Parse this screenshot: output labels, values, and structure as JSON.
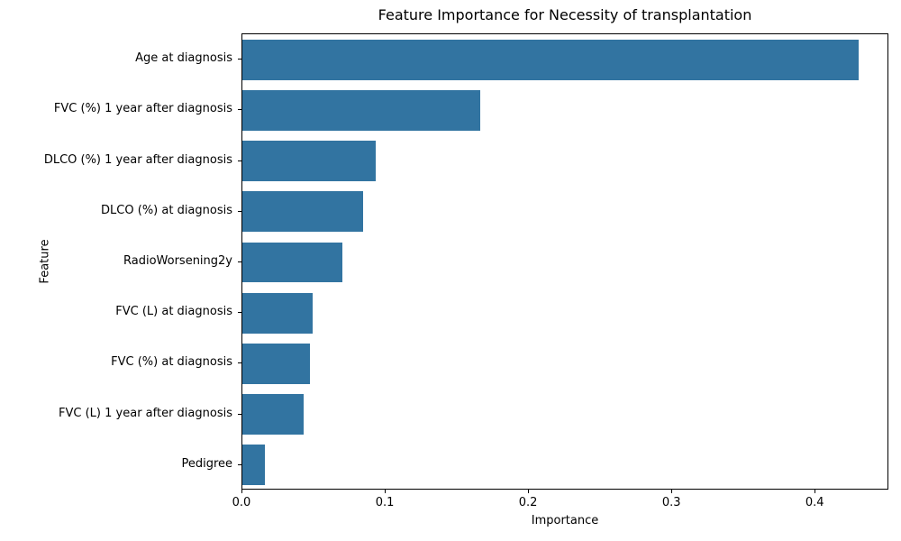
{
  "chart_data": {
    "type": "bar",
    "orientation": "horizontal",
    "title": "Feature Importance for Necessity of transplantation",
    "xlabel": "Importance",
    "ylabel": "Feature",
    "categories": [
      "Age at diagnosis",
      "FVC (%) 1 year after diagnosis",
      "DLCO (%) 1 year after diagnosis",
      "DLCO (%) at diagnosis",
      "RadioWorsening2y",
      "FVC (L) at diagnosis",
      "FVC (%) at diagnosis",
      "FVC (L) 1 year after diagnosis",
      "Pedigree"
    ],
    "values": [
      0.43,
      0.166,
      0.093,
      0.084,
      0.07,
      0.049,
      0.047,
      0.043,
      0.016
    ],
    "xlim": [
      0,
      0.4514
    ],
    "xticks": [
      0.0,
      0.1,
      0.2,
      0.3,
      0.4
    ],
    "xtick_labels": [
      "0.0",
      "0.1",
      "0.2",
      "0.3",
      "0.4"
    ],
    "bar_color": "#3274a1",
    "grid": false,
    "legend": null,
    "background_color": "#ffffff",
    "spine_color": "#000000"
  }
}
